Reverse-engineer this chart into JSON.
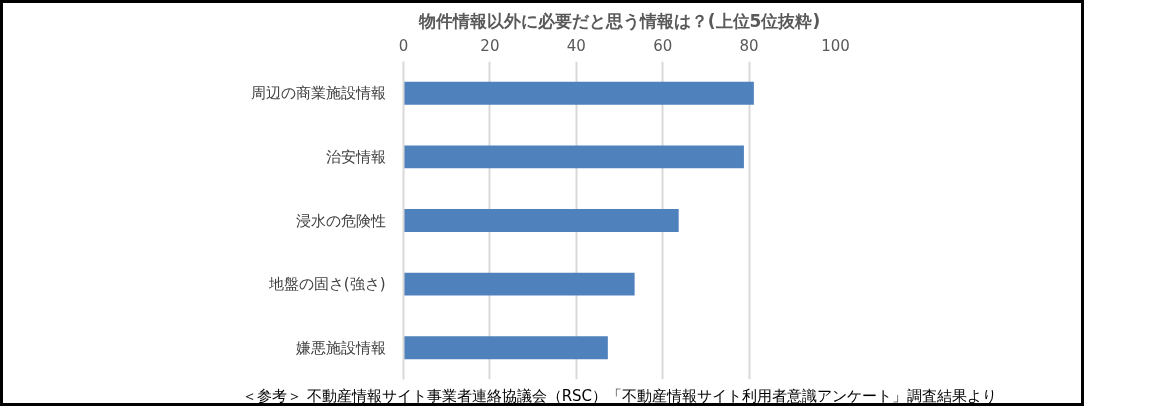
{
  "chart_data": {
    "type": "bar",
    "orientation": "horizontal",
    "title": "物件情報以外に必要だと思う情報は？(上位5位抜粋)",
    "categories": [
      "周辺の商業施設情報",
      "治安情報",
      "浸水の危険性",
      "地盤の固さ(強さ)",
      "嫌悪施設情報"
    ],
    "values": [
      81.1,
      78.8,
      63.7,
      53.5,
      47.3
    ],
    "color": "#4f81bd",
    "xlim": [
      0,
      100
    ],
    "xticks": [
      0,
      20,
      40,
      60,
      80,
      100
    ],
    "grid": "x",
    "annotations": [
      "＜参考＞ 不動産情報サイト事業者連絡協議会（RSC）「不動産情報サイト利用者意識アンケート」調査結果より"
    ]
  }
}
